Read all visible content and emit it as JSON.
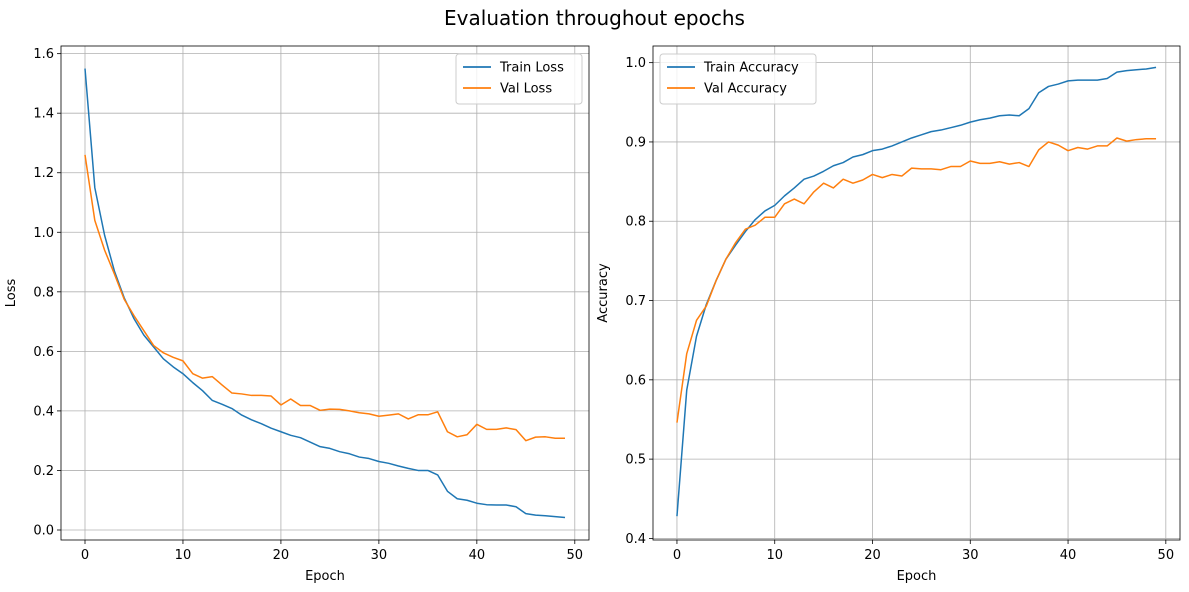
{
  "figure": {
    "title": "Evaluation throughout epochs"
  },
  "colors": {
    "train": "#1f77b4",
    "val": "#ff7f0e",
    "grid": "#b0b0b0",
    "axis": "#000000"
  },
  "chart_data": [
    {
      "type": "line",
      "title": "",
      "xlabel": "Epoch",
      "ylabel": "Loss",
      "xlim": [
        -2.45,
        51.45
      ],
      "ylim": [
        -0.0336,
        1.6257
      ],
      "xticks": [
        0,
        10,
        20,
        30,
        40,
        50
      ],
      "yticks": [
        0.0,
        0.2,
        0.4,
        0.6,
        0.8,
        1.0,
        1.2,
        1.4,
        1.6
      ],
      "ytick_labels": [
        "0.0",
        "0.2",
        "0.4",
        "0.6",
        "0.8",
        "1.0",
        "1.2",
        "1.4",
        "1.6"
      ],
      "grid": true,
      "legend_position": "top-right",
      "x": [
        0,
        1,
        2,
        3,
        4,
        5,
        6,
        7,
        8,
        9,
        10,
        11,
        12,
        13,
        14,
        15,
        16,
        17,
        18,
        19,
        20,
        21,
        22,
        23,
        24,
        25,
        26,
        27,
        28,
        29,
        30,
        31,
        32,
        33,
        34,
        35,
        36,
        37,
        38,
        39,
        40,
        41,
        42,
        43,
        44,
        45,
        46,
        47,
        48,
        49
      ],
      "series": [
        {
          "name": "Train Loss",
          "color": "#1f77b4",
          "values": [
            1.55,
            1.15,
            0.99,
            0.87,
            0.78,
            0.71,
            0.655,
            0.615,
            0.575,
            0.548,
            0.525,
            0.495,
            0.468,
            0.435,
            0.422,
            0.408,
            0.386,
            0.37,
            0.357,
            0.342,
            0.33,
            0.318,
            0.31,
            0.295,
            0.28,
            0.274,
            0.263,
            0.256,
            0.245,
            0.24,
            0.23,
            0.224,
            0.215,
            0.207,
            0.2,
            0.2,
            0.185,
            0.13,
            0.105,
            0.1,
            0.09,
            0.085,
            0.084,
            0.084,
            0.078,
            0.055,
            0.05,
            0.048,
            0.045,
            0.042
          ]
        },
        {
          "name": "Val Loss",
          "color": "#ff7f0e",
          "values": [
            1.26,
            1.04,
            0.94,
            0.86,
            0.775,
            0.72,
            0.67,
            0.62,
            0.595,
            0.58,
            0.568,
            0.525,
            0.51,
            0.515,
            0.487,
            0.46,
            0.457,
            0.452,
            0.452,
            0.45,
            0.42,
            0.44,
            0.418,
            0.418,
            0.402,
            0.406,
            0.405,
            0.4,
            0.394,
            0.39,
            0.382,
            0.386,
            0.39,
            0.373,
            0.387,
            0.387,
            0.397,
            0.33,
            0.313,
            0.32,
            0.355,
            0.338,
            0.338,
            0.343,
            0.337,
            0.3,
            0.312,
            0.313,
            0.308,
            0.308
          ]
        }
      ]
    },
    {
      "type": "line",
      "title": "",
      "xlabel": "Epoch",
      "ylabel": "Accuracy",
      "xlim": [
        -2.45,
        51.45
      ],
      "ylim": [
        0.398,
        1.021
      ],
      "xticks": [
        0,
        10,
        20,
        30,
        40,
        50
      ],
      "yticks": [
        0.4,
        0.5,
        0.6,
        0.7,
        0.8,
        0.9,
        1.0
      ],
      "ytick_labels": [
        "0.4",
        "0.5",
        "0.6",
        "0.7",
        "0.8",
        "0.9",
        "1.0"
      ],
      "grid": true,
      "legend_position": "top-left",
      "x": [
        0,
        1,
        2,
        3,
        4,
        5,
        6,
        7,
        8,
        9,
        10,
        11,
        12,
        13,
        14,
        15,
        16,
        17,
        18,
        19,
        20,
        21,
        22,
        23,
        24,
        25,
        26,
        27,
        28,
        29,
        30,
        31,
        32,
        33,
        34,
        35,
        36,
        37,
        38,
        39,
        40,
        41,
        42,
        43,
        44,
        45,
        46,
        47,
        48,
        49
      ],
      "series": [
        {
          "name": "Train Accuracy",
          "color": "#1f77b4",
          "values": [
            0.428,
            0.587,
            0.655,
            0.695,
            0.725,
            0.752,
            0.77,
            0.787,
            0.802,
            0.813,
            0.82,
            0.832,
            0.842,
            0.853,
            0.857,
            0.863,
            0.87,
            0.874,
            0.881,
            0.884,
            0.889,
            0.891,
            0.895,
            0.9,
            0.905,
            0.909,
            0.913,
            0.915,
            0.918,
            0.921,
            0.925,
            0.928,
            0.93,
            0.933,
            0.934,
            0.933,
            0.942,
            0.962,
            0.97,
            0.973,
            0.977,
            0.978,
            0.978,
            0.978,
            0.98,
            0.988,
            0.99,
            0.991,
            0.992,
            0.994
          ]
        },
        {
          "name": "Val Accuracy",
          "color": "#ff7f0e",
          "values": [
            0.546,
            0.633,
            0.675,
            0.693,
            0.725,
            0.752,
            0.773,
            0.79,
            0.795,
            0.805,
            0.805,
            0.822,
            0.828,
            0.822,
            0.837,
            0.848,
            0.842,
            0.853,
            0.848,
            0.852,
            0.859,
            0.855,
            0.859,
            0.857,
            0.867,
            0.866,
            0.866,
            0.865,
            0.869,
            0.869,
            0.876,
            0.873,
            0.873,
            0.875,
            0.872,
            0.874,
            0.869,
            0.89,
            0.9,
            0.896,
            0.889,
            0.893,
            0.891,
            0.895,
            0.895,
            0.905,
            0.901,
            0.903,
            0.904,
            0.904
          ]
        }
      ]
    }
  ]
}
